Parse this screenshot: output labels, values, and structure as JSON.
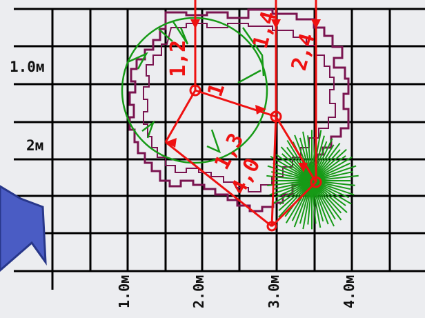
{
  "axes": {
    "y_labels": [
      "1.0м",
      "2м"
    ],
    "x_labels": [
      "1.0м",
      "2.0м",
      "3.0м",
      "4.0м"
    ]
  },
  "measurements": [
    "1,2",
    "1,4",
    "2,4",
    "1",
    "1,3",
    "4,0"
  ],
  "colors": {
    "background": "#ecedf0",
    "grid": "#000000",
    "measure": "#ee1111",
    "vegetation": "#169a16",
    "boundary": "#7a1450",
    "pointer": "#3b4fb0"
  },
  "icons": [
    "pointer-arrow-icon"
  ]
}
